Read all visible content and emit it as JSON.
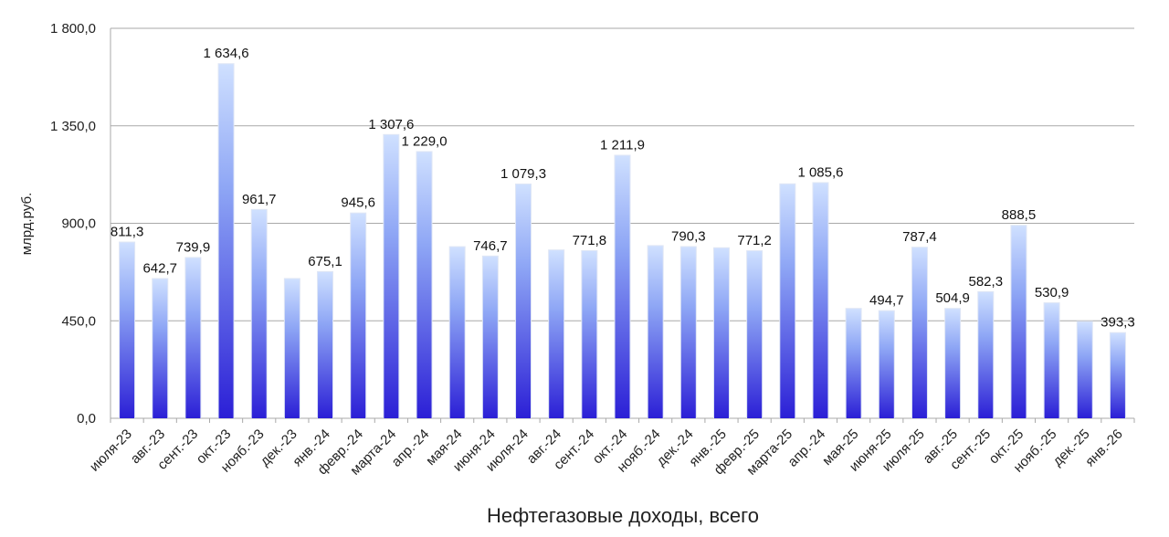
{
  "chart_data": {
    "type": "bar",
    "title": "Нефтегазовые доходы, всего",
    "ylabel": "млрд.руб.",
    "xlabel": "",
    "ylim": [
      0,
      1800
    ],
    "yticks": [
      "0,0",
      "450,0",
      "900,0",
      "1 350,0",
      "1 800,0"
    ],
    "ytick_values": [
      0,
      450,
      900,
      1350,
      1800
    ],
    "grid": true,
    "categories": [
      "июля-23",
      "авг.-23",
      "сент.-23",
      "окт.-23",
      "нояб.-23",
      "дек.-23",
      "янв.-24",
      "февр.-24",
      "марта-24",
      "апр.-24",
      "мая-24",
      "июня-24",
      "июля-24",
      "авг.-24",
      "сент.-24",
      "окт.-24",
      "нояб.-24",
      "дек.-24",
      "янв.-25",
      "февр.-25",
      "марта-25",
      "апр.-24",
      "мая-25",
      "июня-25",
      "июля-25",
      "авг.-25",
      "сент.-25",
      "окт.-25",
      "нояб.-25",
      "дек.-25",
      "янв.-26"
    ],
    "values": [
      811.3,
      642.7,
      739.9,
      1634.6,
      961.7,
      643,
      675.1,
      945.6,
      1307.6,
      1229.0,
      790,
      746.7,
      1079.3,
      775,
      771.8,
      1211.9,
      795,
      790.3,
      785,
      771.2,
      1080,
      1085.6,
      505,
      494.7,
      787.4,
      504.9,
      582.3,
      888.5,
      530.9,
      445,
      393.3
    ],
    "labels": [
      "811,3",
      "642,7",
      "739,9",
      "1 634,6",
      "961,7",
      "",
      "675,1",
      "945,6",
      "1 307,6",
      "1 229,0",
      "",
      "746,7",
      "1 079,3",
      "",
      "771,8",
      "1 211,9",
      "",
      "790,3",
      "",
      "771,2",
      "",
      "1 085,6",
      "",
      "494,7",
      "787,4",
      "504,9",
      "582,3",
      "888,5",
      "530,9",
      "",
      "393,3"
    ],
    "colors": {
      "bar_top": "#cfe0ff",
      "bar_bottom": "#2b1fd6",
      "grid": "#a9a9a9"
    }
  }
}
